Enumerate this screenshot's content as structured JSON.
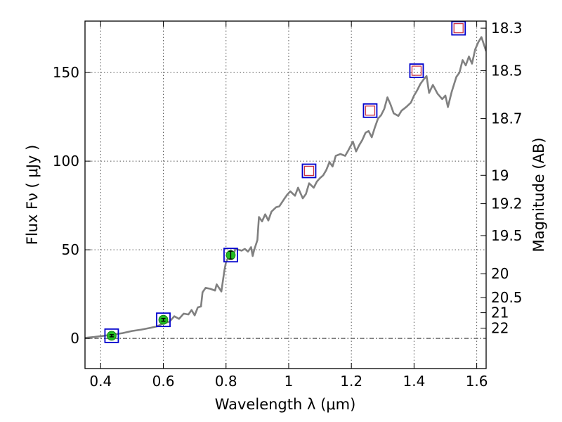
{
  "chart_data": {
    "type": "line",
    "xlabel": "Wavelength  λ (μm)",
    "ylabel": "Flux  Fν  ( μJy )",
    "ylabel_right": "Magnitude (AB)",
    "xlim": [
      0.35,
      1.63
    ],
    "ylim": [
      -17,
      179
    ],
    "grid": true,
    "x_ticks": [
      0.4,
      0.6,
      0.8,
      1,
      1.2,
      1.4,
      1.6
    ],
    "x_tick_labels": [
      "0.4",
      "0.6",
      "0.8",
      "1",
      "1.2",
      "1.4",
      "1.6"
    ],
    "y_ticks": [
      0,
      50,
      100,
      150
    ],
    "y_tick_labels": [
      "0",
      "50",
      "100",
      "150"
    ],
    "mag_ticks": [
      {
        "label": "18.3",
        "flux": 175.0
      },
      {
        "label": "18.5",
        "flux": 151.0
      },
      {
        "label": "18.7",
        "flux": 124.0
      },
      {
        "label": "19",
        "flux": 92.0
      },
      {
        "label": "19.2",
        "flux": 76.0
      },
      {
        "label": "19.5",
        "flux": 58.0
      },
      {
        "label": "20",
        "flux": 36.5
      },
      {
        "label": "20.5",
        "flux": 23.0
      },
      {
        "label": "21",
        "flux": 14.5
      },
      {
        "label": "22",
        "flux": 5.8
      }
    ],
    "zero_line_y": 0,
    "series": [
      {
        "color": "#808080",
        "points": [
          [
            0.35,
            0.3
          ],
          [
            0.38,
            0.8
          ],
          [
            0.41,
            1.5
          ],
          [
            0.44,
            2.2
          ],
          [
            0.47,
            3.0
          ],
          [
            0.5,
            4.2
          ],
          [
            0.53,
            5.0
          ],
          [
            0.56,
            6.0
          ],
          [
            0.58,
            6.8
          ],
          [
            0.6,
            8.5
          ],
          [
            0.62,
            9.5
          ],
          [
            0.635,
            12.5
          ],
          [
            0.65,
            11.0
          ],
          [
            0.665,
            14.0
          ],
          [
            0.68,
            13.5
          ],
          [
            0.69,
            16.0
          ],
          [
            0.7,
            13.0
          ],
          [
            0.71,
            17.5
          ],
          [
            0.72,
            18.0
          ],
          [
            0.725,
            26.0
          ],
          [
            0.735,
            28.5
          ],
          [
            0.75,
            28.0
          ],
          [
            0.765,
            27.0
          ],
          [
            0.77,
            30.5
          ],
          [
            0.785,
            26.5
          ],
          [
            0.795,
            38.5
          ],
          [
            0.8,
            43.0
          ],
          [
            0.81,
            46.5
          ],
          [
            0.82,
            45.0
          ],
          [
            0.83,
            50.5
          ],
          [
            0.85,
            49.5
          ],
          [
            0.86,
            50.5
          ],
          [
            0.87,
            49.0
          ],
          [
            0.88,
            51.5
          ],
          [
            0.885,
            46.5
          ],
          [
            0.89,
            50.0
          ],
          [
            0.9,
            55.5
          ],
          [
            0.905,
            68.5
          ],
          [
            0.915,
            66.0
          ],
          [
            0.925,
            70.0
          ],
          [
            0.935,
            66.5
          ],
          [
            0.945,
            71.5
          ],
          [
            0.96,
            74.0
          ],
          [
            0.97,
            74.5
          ],
          [
            0.985,
            78.5
          ],
          [
            0.995,
            81.0
          ],
          [
            1.005,
            83.0
          ],
          [
            1.02,
            80.5
          ],
          [
            1.03,
            85.0
          ],
          [
            1.045,
            79.0
          ],
          [
            1.055,
            81.5
          ],
          [
            1.065,
            87.5
          ],
          [
            1.08,
            85.0
          ],
          [
            1.09,
            88.5
          ],
          [
            1.1,
            90.5
          ],
          [
            1.11,
            92.0
          ],
          [
            1.12,
            95.0
          ],
          [
            1.13,
            99.5
          ],
          [
            1.14,
            97.0
          ],
          [
            1.15,
            103.0
          ],
          [
            1.165,
            104.0
          ],
          [
            1.18,
            103.0
          ],
          [
            1.19,
            106.0
          ],
          [
            1.205,
            111.0
          ],
          [
            1.215,
            105.5
          ],
          [
            1.225,
            109.0
          ],
          [
            1.235,
            112.0
          ],
          [
            1.245,
            116.0
          ],
          [
            1.255,
            117.0
          ],
          [
            1.265,
            113.5
          ],
          [
            1.275,
            119.0
          ],
          [
            1.285,
            124.0
          ],
          [
            1.295,
            126.0
          ],
          [
            1.305,
            129.5
          ],
          [
            1.315,
            136.0
          ],
          [
            1.325,
            132.0
          ],
          [
            1.335,
            127.0
          ],
          [
            1.35,
            125.5
          ],
          [
            1.36,
            128.5
          ],
          [
            1.375,
            130.5
          ],
          [
            1.39,
            133.0
          ],
          [
            1.4,
            137.0
          ],
          [
            1.41,
            140.0
          ],
          [
            1.42,
            143.5
          ],
          [
            1.43,
            146.0
          ],
          [
            1.44,
            148.0
          ],
          [
            1.448,
            138.5
          ],
          [
            1.46,
            143.0
          ],
          [
            1.475,
            138.0
          ],
          [
            1.49,
            135.0
          ],
          [
            1.5,
            137.0
          ],
          [
            1.508,
            130.5
          ],
          [
            1.52,
            139.0
          ],
          [
            1.535,
            147.5
          ],
          [
            1.545,
            150.0
          ],
          [
            1.555,
            157.0
          ],
          [
            1.565,
            154.0
          ],
          [
            1.575,
            159.0
          ],
          [
            1.585,
            155.0
          ],
          [
            1.595,
            163.0
          ],
          [
            1.605,
            167.0
          ],
          [
            1.615,
            170.0
          ],
          [
            1.63,
            162.0
          ]
        ]
      }
    ],
    "squares": [
      {
        "x": 0.435,
        "y": 1.5,
        "kind": "filled"
      },
      {
        "x": 0.6,
        "y": 10.5,
        "kind": "filled"
      },
      {
        "x": 0.815,
        "y": 47.0,
        "kind": "filled"
      },
      {
        "x": 1.065,
        "y": 94.5,
        "kind": "open"
      },
      {
        "x": 1.26,
        "y": 128.5,
        "kind": "open"
      },
      {
        "x": 1.408,
        "y": 151.0,
        "kind": "open"
      },
      {
        "x": 1.542,
        "y": 175.0,
        "kind": "open"
      }
    ],
    "data_points": [
      {
        "x": 0.435,
        "y": 1.5,
        "err": 0.6
      },
      {
        "x": 0.6,
        "y": 10.5,
        "err": 0.8
      },
      {
        "x": 0.815,
        "y": 47.0,
        "err": 2.2
      }
    ],
    "model_points": [
      {
        "x": 1.065,
        "y": 94.5
      },
      {
        "x": 1.26,
        "y": 128.5
      },
      {
        "x": 1.408,
        "y": 151.0
      },
      {
        "x": 1.542,
        "y": 175.0
      }
    ],
    "colors": {
      "spectrum": "#808080",
      "square_outline": "#0000cc",
      "data_fill": "#22bb22",
      "model_outline": "#cc3344",
      "grid": "#555555"
    }
  }
}
